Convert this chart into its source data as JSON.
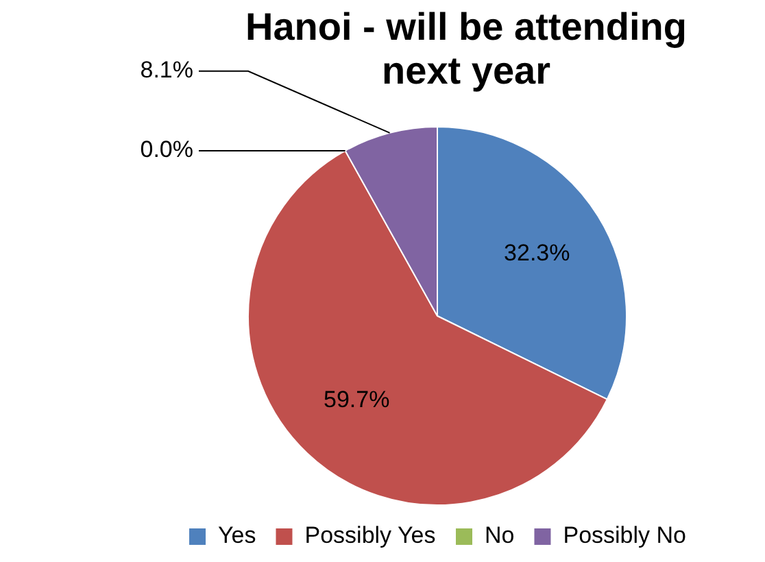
{
  "chart_data": {
    "type": "pie",
    "title": "Hanoi - will be attending next year",
    "categories": [
      "Yes",
      "Possibly Yes",
      "No",
      "Possibly No"
    ],
    "values": [
      32.3,
      59.7,
      0.0,
      8.1
    ],
    "colors": [
      "#4f81bd",
      "#c0504d",
      "#9bbb59",
      "#8064a2"
    ],
    "value_labels": [
      "32.3%",
      "59.7%",
      "0.0%",
      "8.1%"
    ],
    "legend": "bottom"
  }
}
